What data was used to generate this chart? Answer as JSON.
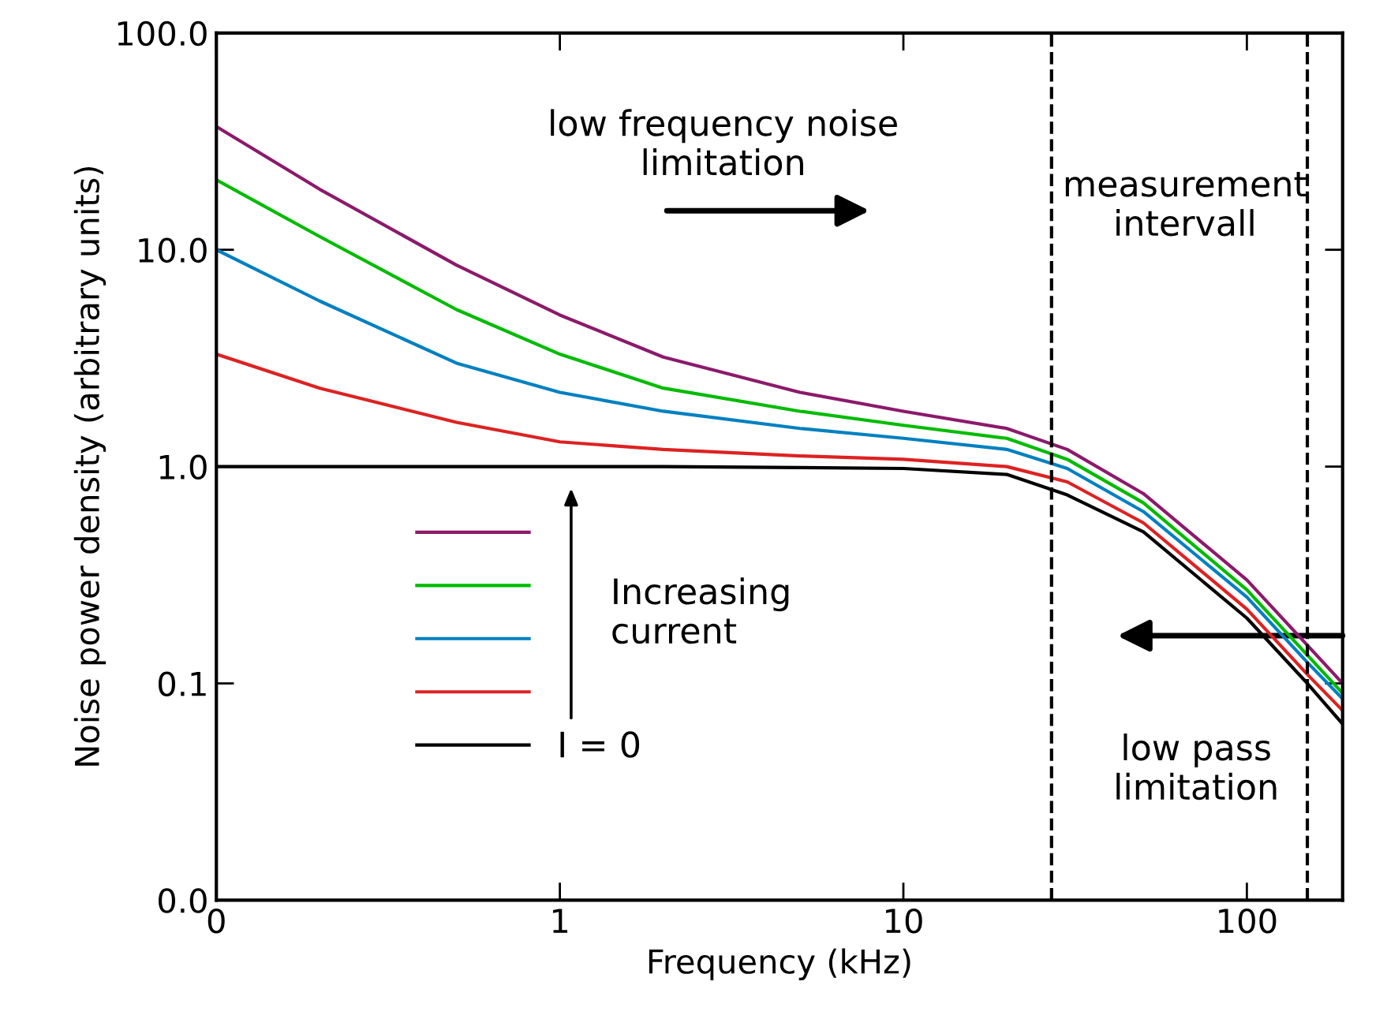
{
  "chart_data": {
    "type": "line",
    "xlabel": "Frequency (kHz)",
    "ylabel": "Noise power density (arbitrary units)",
    "x": [
      0.1,
      0.2,
      0.5,
      1,
      2,
      5,
      10,
      20,
      30,
      50,
      100,
      150,
      190
    ],
    "series": [
      {
        "color": "#8b1a6b",
        "values": [
          37,
          19,
          8.5,
          5,
          3.2,
          2.2,
          1.8,
          1.5,
          1.2,
          0.75,
          0.3,
          0.15,
          0.1
        ]
      },
      {
        "color": "#00bb00",
        "values": [
          21,
          11.5,
          5.3,
          3.3,
          2.3,
          1.8,
          1.55,
          1.35,
          1.08,
          0.68,
          0.27,
          0.135,
          0.09
        ]
      },
      {
        "color": "#0080c0",
        "values": [
          10,
          5.8,
          3.0,
          2.2,
          1.8,
          1.5,
          1.35,
          1.2,
          0.98,
          0.62,
          0.25,
          0.125,
          0.085
        ]
      },
      {
        "color": "#dd2222",
        "values": [
          3.3,
          2.3,
          1.6,
          1.3,
          1.2,
          1.12,
          1.08,
          1.0,
          0.85,
          0.55,
          0.22,
          0.11,
          0.075
        ]
      },
      {
        "name": "I = 0",
        "color": "#000000",
        "values": [
          1,
          1,
          1,
          1,
          1,
          0.99,
          0.98,
          0.92,
          0.74,
          0.5,
          0.2,
          0.1,
          0.065
        ]
      }
    ],
    "log": "xy",
    "xlim": [
      0.1,
      190
    ],
    "ylim": [
      0.01,
      100
    ],
    "xticks": [
      {
        "value": 0.1,
        "label": "0"
      },
      1,
      10,
      100
    ],
    "yticks": [
      {
        "value": 0.01,
        "label": "0.0"
      },
      {
        "value": 0.1,
        "label": "0.1"
      },
      {
        "value": 1,
        "label": "1.0"
      },
      {
        "value": 10,
        "label": "10.0"
      },
      {
        "value": 100,
        "label": "100.0"
      }
    ],
    "ref_lines": [
      {
        "axis": "x",
        "value": 27,
        "color": "#000000",
        "line_style": "dashed"
      },
      {
        "axis": "x",
        "value": 150,
        "color": "#000000",
        "line_style": "dashed"
      }
    ],
    "annotations": [
      "low frequency noise\nlimitation",
      "measurement\nintervall",
      "low pass\nlimitation",
      "Increasing\ncurrent"
    ],
    "legend": "bottom left",
    "grid": false,
    "line_style": "solid",
    "marker": "none"
  }
}
